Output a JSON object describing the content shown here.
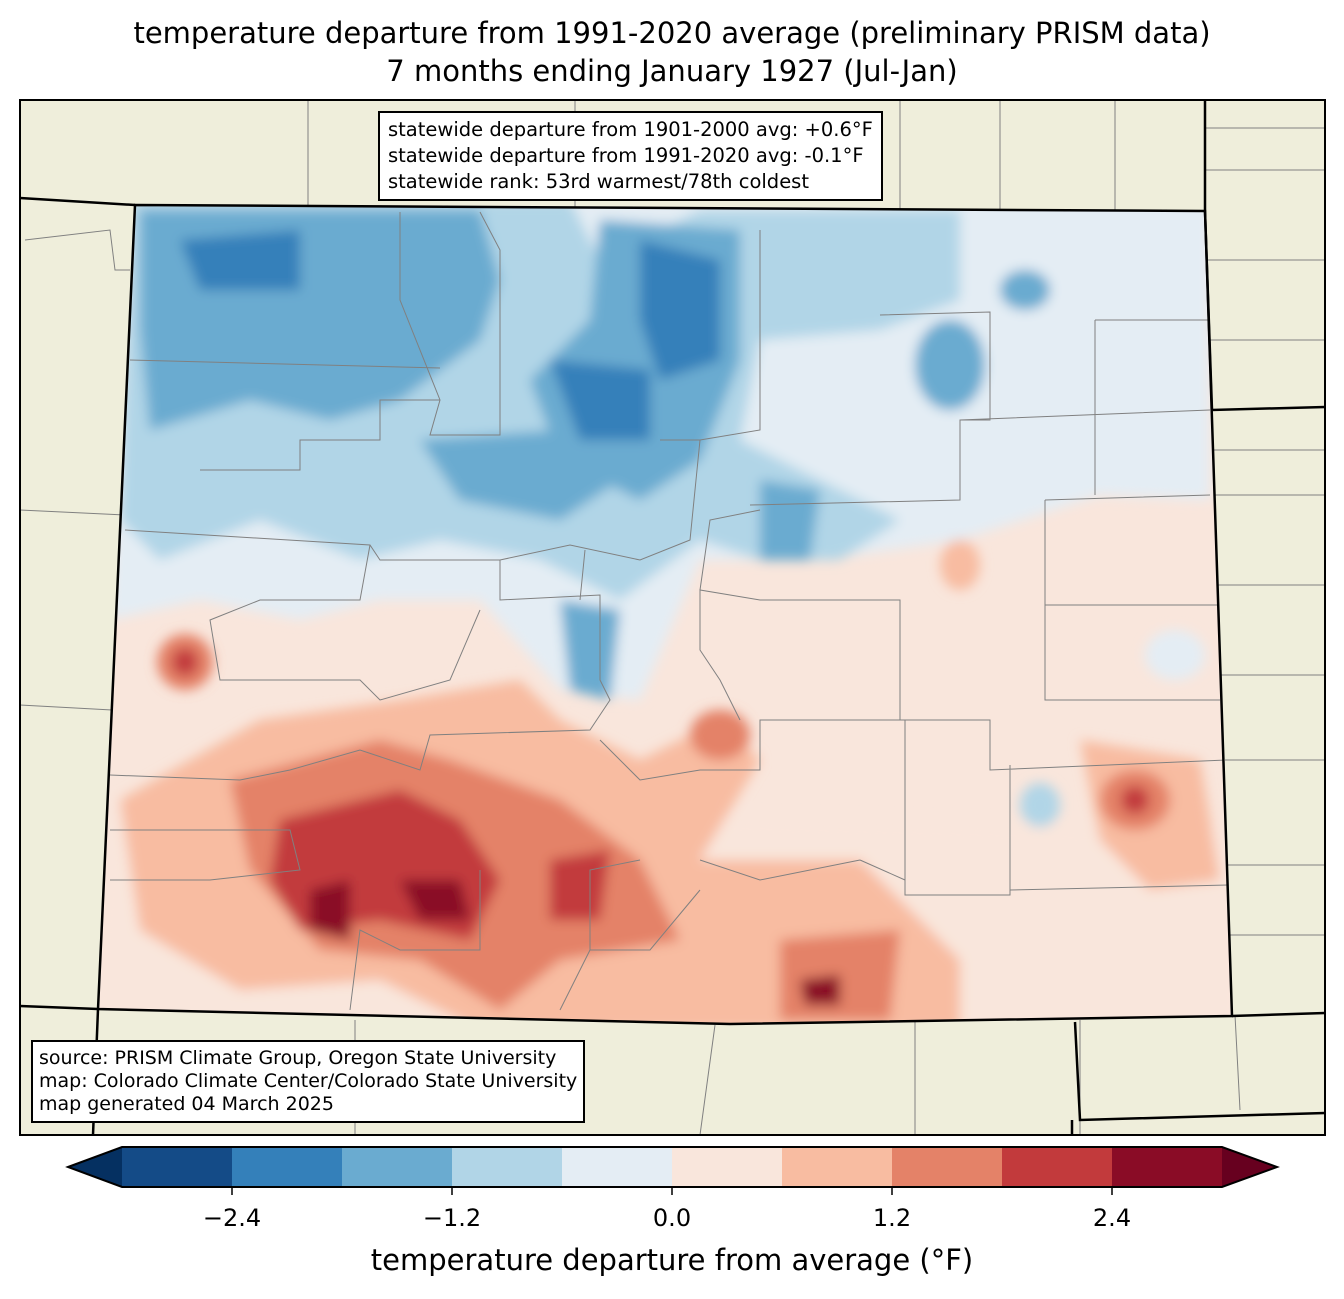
{
  "title": {
    "line1": "temperature departure from 1991-2020 average (preliminary PRISM data)",
    "line2": "7 months ending January 1927 (Jul-Jan)"
  },
  "stats": {
    "line1": "statewide departure from 1901-2000 avg: +0.6°F",
    "line2": "statewide departure from 1991-2020 avg: -0.1°F",
    "line3": "statewide rank: 53rd warmest/78th coldest"
  },
  "source": {
    "line1": "source: PRISM Climate Group, Oregon State University",
    "line2": "map: Colorado Climate Center/Colorado State University",
    "line3": "map generated 04 March 2025"
  },
  "colorbar": {
    "label": "temperature departure from average (°F)",
    "bounds": [
      -3.0,
      -2.4,
      -1.8,
      -1.2,
      -0.6,
      0.0,
      0.6,
      1.2,
      1.8,
      2.4,
      3.0
    ],
    "colors": [
      "#144b87",
      "#3480ba",
      "#6aabd0",
      "#b1d5e7",
      "#e4edf4",
      "#f9e6dc",
      "#f8bca1",
      "#e48268",
      "#c23a3c",
      "#8a0c26"
    ],
    "under_color": "#053061",
    "over_color": "#67001f",
    "ticks": [
      -2.4,
      -1.2,
      0.0,
      1.2,
      2.4
    ],
    "tick_labels": [
      "−2.4",
      "−1.2",
      "0.0",
      "1.2",
      "2.4"
    ]
  },
  "colors": {
    "land": "#efeedb",
    "border": "#808080"
  }
}
